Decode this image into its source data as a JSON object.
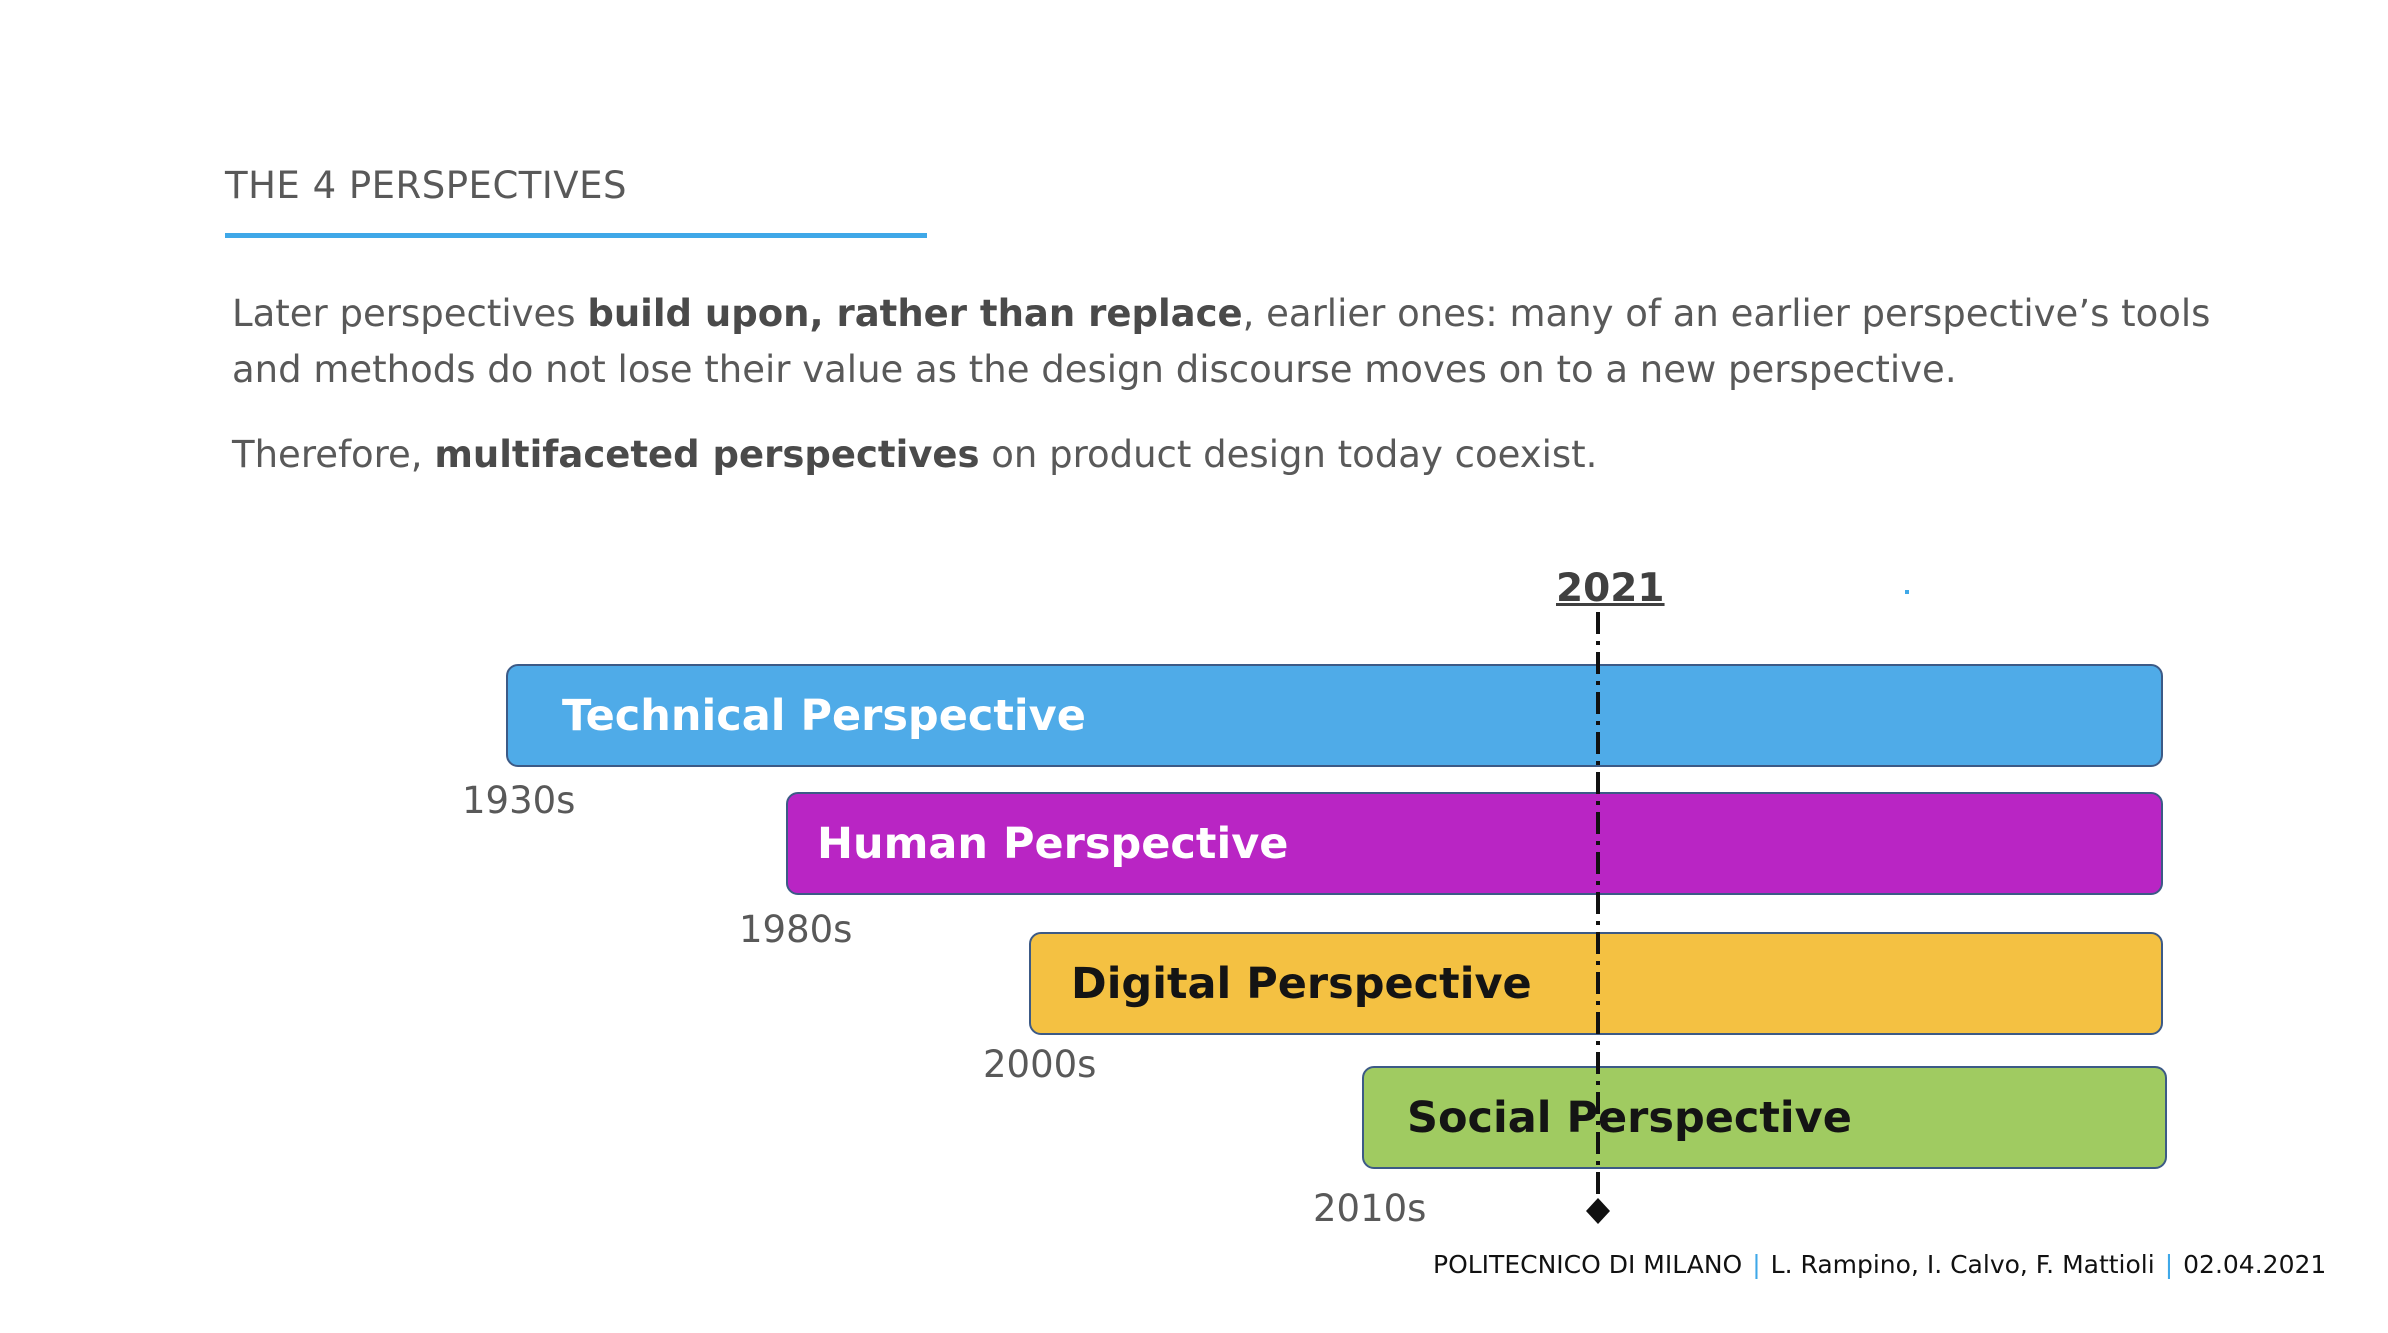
{
  "slide": {
    "title": "THE 4 PERSPECTIVES",
    "paragraph1": {
      "pre": "Later perspectives ",
      "bold": "build upon, rather than replace",
      "post": ", earlier ones: many of an earlier perspective’s tools and methods do not lose their value as the design discourse moves on to a new perspective."
    },
    "paragraph2": {
      "pre": "Therefore, ",
      "bold": "multifaceted perspectives",
      "post": " on product design today coexist."
    }
  },
  "timeline": {
    "current_year": "2021",
    "perspectives": [
      {
        "label": "Technical Perspective",
        "start": "1930s",
        "color": "#4fabe8"
      },
      {
        "label": "Human Perspective",
        "start": "1980s",
        "color": "#b925c4"
      },
      {
        "label": "Digital Perspective",
        "start": "2000s",
        "color": "#f4c142"
      },
      {
        "label": "Social Perspective",
        "start": "2010s",
        "color": "#a0cb61"
      }
    ]
  },
  "footer": {
    "institution": "POLITECNICO DI MILANO",
    "authors": "L. Rampino, I. Calvo, F. Mattioli",
    "date": "02.04.2021",
    "separator": "|"
  },
  "colors": {
    "accent": "#3fa8e8",
    "text": "#595959"
  }
}
